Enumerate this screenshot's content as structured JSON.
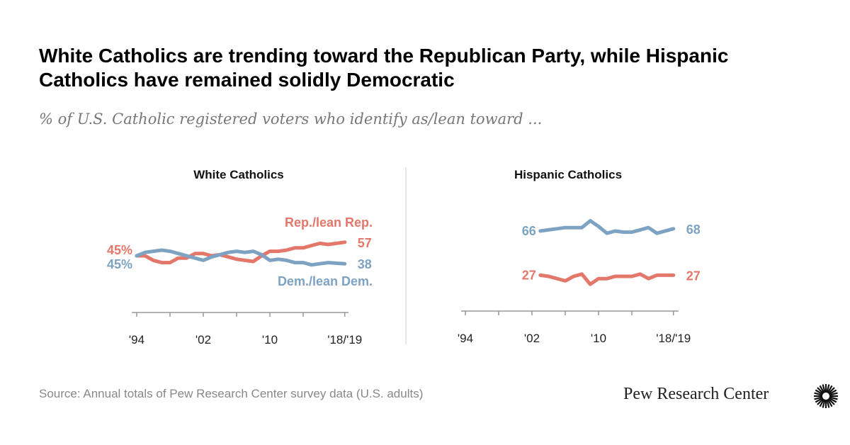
{
  "title": "White Catholics are trending toward the Republican Party, while Hispanic Catholics have remained solidly Democratic",
  "subtitle": "% of U.S. Catholic registered voters who identify as/lean toward ...",
  "source": "Source: Annual totals of Pew Research Center survey data (U.S. adults)",
  "logo": {
    "text": "Pew Research Center",
    "icon": "sunburst-icon"
  },
  "colors": {
    "rep": "#e3776a",
    "dem": "#7ea3c2"
  },
  "chart_data": [
    {
      "type": "line",
      "title": "White Catholics",
      "x_ticks": [
        1994,
        1998,
        2002,
        2006,
        2010,
        2014,
        2019
      ],
      "x_tick_labels": [
        "'94",
        "",
        "'02",
        "",
        "'10",
        "",
        "'18/'19"
      ],
      "xlim": [
        1994,
        2019
      ],
      "ylim": [
        30,
        75
      ],
      "grid": false,
      "series": [
        {
          "name": "Rep./lean Rep.",
          "start_label": "45%",
          "end_label": "57",
          "x": [
            1994,
            1995,
            1996,
            1997,
            1998,
            1999,
            2000,
            2001,
            2002,
            2003,
            2004,
            2005,
            2006,
            2007,
            2008,
            2009,
            2010,
            2011,
            2012,
            2013,
            2014,
            2015,
            2016,
            2017,
            2019
          ],
          "values": [
            45,
            45,
            41,
            39,
            39,
            43,
            43,
            47,
            47,
            45,
            46,
            44,
            42,
            41,
            40,
            45,
            49,
            49,
            50,
            52,
            52,
            54,
            56,
            55,
            57
          ]
        },
        {
          "name": "Dem./lean Dem.",
          "start_label": "45%",
          "end_label": "38",
          "x": [
            1994,
            1995,
            1996,
            1997,
            1998,
            1999,
            2000,
            2001,
            2002,
            2003,
            2004,
            2005,
            2006,
            2007,
            2008,
            2009,
            2010,
            2011,
            2012,
            2013,
            2014,
            2015,
            2016,
            2017,
            2019
          ],
          "values": [
            45,
            48,
            49,
            50,
            49,
            47,
            45,
            43,
            41,
            44,
            46,
            48,
            49,
            48,
            49,
            46,
            41,
            42,
            41,
            39,
            39,
            37,
            38,
            39,
            38
          ]
        }
      ]
    },
    {
      "type": "line",
      "title": "Hispanic Catholics",
      "x_ticks": [
        1994,
        1998,
        2002,
        2006,
        2010,
        2014,
        2019
      ],
      "x_tick_labels": [
        "'94",
        "",
        "'02",
        "",
        "'10",
        "",
        "'18/'19"
      ],
      "xlim": [
        1994,
        2019
      ],
      "ylim": [
        15,
        80
      ],
      "grid": false,
      "series": [
        {
          "name": "Dem./lean Dem.",
          "start_label": "66",
          "end_label": "68",
          "x": [
            2003,
            2004,
            2005,
            2006,
            2007,
            2008,
            2009,
            2010,
            2011,
            2012,
            2013,
            2014,
            2015,
            2016,
            2017,
            2019
          ],
          "values": [
            66,
            67,
            68,
            69,
            69,
            69,
            75,
            70,
            64,
            66,
            65,
            65,
            67,
            69,
            64,
            68
          ]
        },
        {
          "name": "Rep./lean Rep.",
          "start_label": "27",
          "end_label": "27",
          "x": [
            2003,
            2004,
            2005,
            2006,
            2007,
            2008,
            2009,
            2010,
            2011,
            2012,
            2013,
            2014,
            2015,
            2016,
            2017,
            2019
          ],
          "values": [
            27,
            26,
            24,
            22,
            26,
            28,
            19,
            24,
            24,
            26,
            26,
            26,
            28,
            24,
            27,
            27
          ]
        }
      ]
    }
  ]
}
